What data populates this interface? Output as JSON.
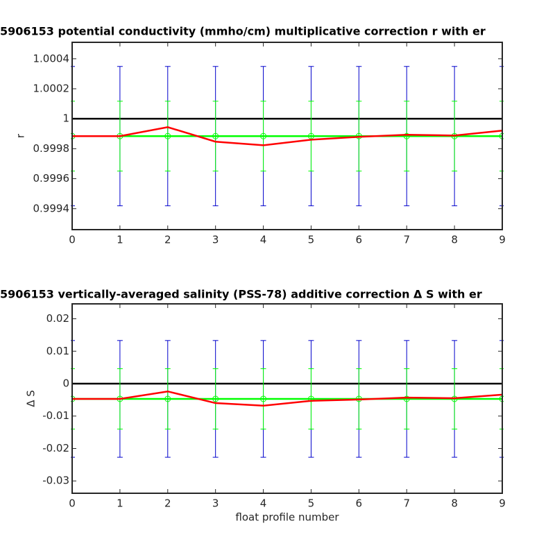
{
  "chart_data": [
    {
      "type": "line",
      "title": "5906153 potential conductivity (mmho/cm) multiplicative correction r with er",
      "ylabel": "r",
      "x": [
        0,
        1,
        2,
        3,
        4,
        5,
        6,
        7,
        8,
        9
      ],
      "xlim": [
        0,
        9
      ],
      "xticks": [
        0,
        1,
        2,
        3,
        4,
        5,
        6,
        7,
        8,
        9
      ],
      "ylim": [
        0.99926,
        1.00051
      ],
      "yticks": [
        0.9994,
        0.9996,
        0.9998,
        1,
        1.0002,
        1.0004
      ],
      "series": [
        {
          "color": "#0000cc",
          "line": false,
          "values": [
            0.999884,
            0.999884,
            0.999884,
            0.999884,
            0.999884,
            0.999884,
            0.999884,
            0.999884,
            0.999884,
            0.999884
          ],
          "errors": [
            0.000465,
            0.000465,
            0.000465,
            0.000465,
            0.000465,
            0.000465,
            0.000465,
            0.000465,
            0.000465,
            0.000465
          ]
        },
        {
          "color": "#000000",
          "values": [
            1,
            1,
            1,
            1,
            1,
            1,
            1,
            1,
            1,
            1
          ]
        },
        {
          "color": "#00ff00",
          "marker": "o",
          "values": [
            0.999884,
            0.999884,
            0.999884,
            0.999884,
            0.999884,
            0.999884,
            0.999884,
            0.999884,
            0.999884,
            0.999884
          ],
          "errors": [
            0.000233,
            0.000233,
            0.000233,
            0.000233,
            0.000233,
            0.000233,
            0.000233,
            0.000233,
            0.000233,
            0.000233
          ]
        },
        {
          "color": "#ff0000",
          "values": [
            0.999884,
            0.999884,
            0.999944,
            0.999847,
            0.999823,
            0.99986,
            0.999879,
            0.999893,
            0.999888,
            0.999921
          ]
        }
      ]
    },
    {
      "type": "line",
      "title": "5906153 vertically-averaged salinity (PSS-78) additive correction Δ S with er",
      "ylabel": "Δ S",
      "xlabel": "float profile number",
      "x": [
        0,
        1,
        2,
        3,
        4,
        5,
        6,
        7,
        8,
        9
      ],
      "xlim": [
        0,
        9
      ],
      "xticks": [
        0,
        1,
        2,
        3,
        4,
        5,
        6,
        7,
        8,
        9
      ],
      "ylim": [
        -0.0338,
        0.0246
      ],
      "yticks": [
        -0.03,
        -0.02,
        -0.01,
        0,
        0.01,
        0.02
      ],
      "series": [
        {
          "color": "#0000cc",
          "line": false,
          "values": [
            -0.0047,
            -0.0047,
            -0.0047,
            -0.0047,
            -0.0047,
            -0.0047,
            -0.0047,
            -0.0047,
            -0.0047,
            -0.0047
          ],
          "errors": [
            0.018,
            0.018,
            0.018,
            0.018,
            0.018,
            0.018,
            0.018,
            0.018,
            0.018,
            0.018
          ]
        },
        {
          "color": "#000000",
          "values": [
            0,
            0,
            0,
            0,
            0,
            0,
            0,
            0,
            0,
            0
          ]
        },
        {
          "color": "#00ff00",
          "marker": "o",
          "values": [
            -0.0047,
            -0.0047,
            -0.0047,
            -0.0047,
            -0.0047,
            -0.0047,
            -0.0047,
            -0.0047,
            -0.0047,
            -0.0047
          ],
          "errors": [
            0.0093,
            0.0093,
            0.0093,
            0.0093,
            0.0093,
            0.0093,
            0.0093,
            0.0093,
            0.0093,
            0.0093
          ]
        },
        {
          "color": "#ff0000",
          "values": [
            -0.0047,
            -0.0047,
            -0.0024,
            -0.006,
            -0.0068,
            -0.0053,
            -0.0049,
            -0.0043,
            -0.0045,
            -0.0034
          ]
        }
      ]
    }
  ]
}
